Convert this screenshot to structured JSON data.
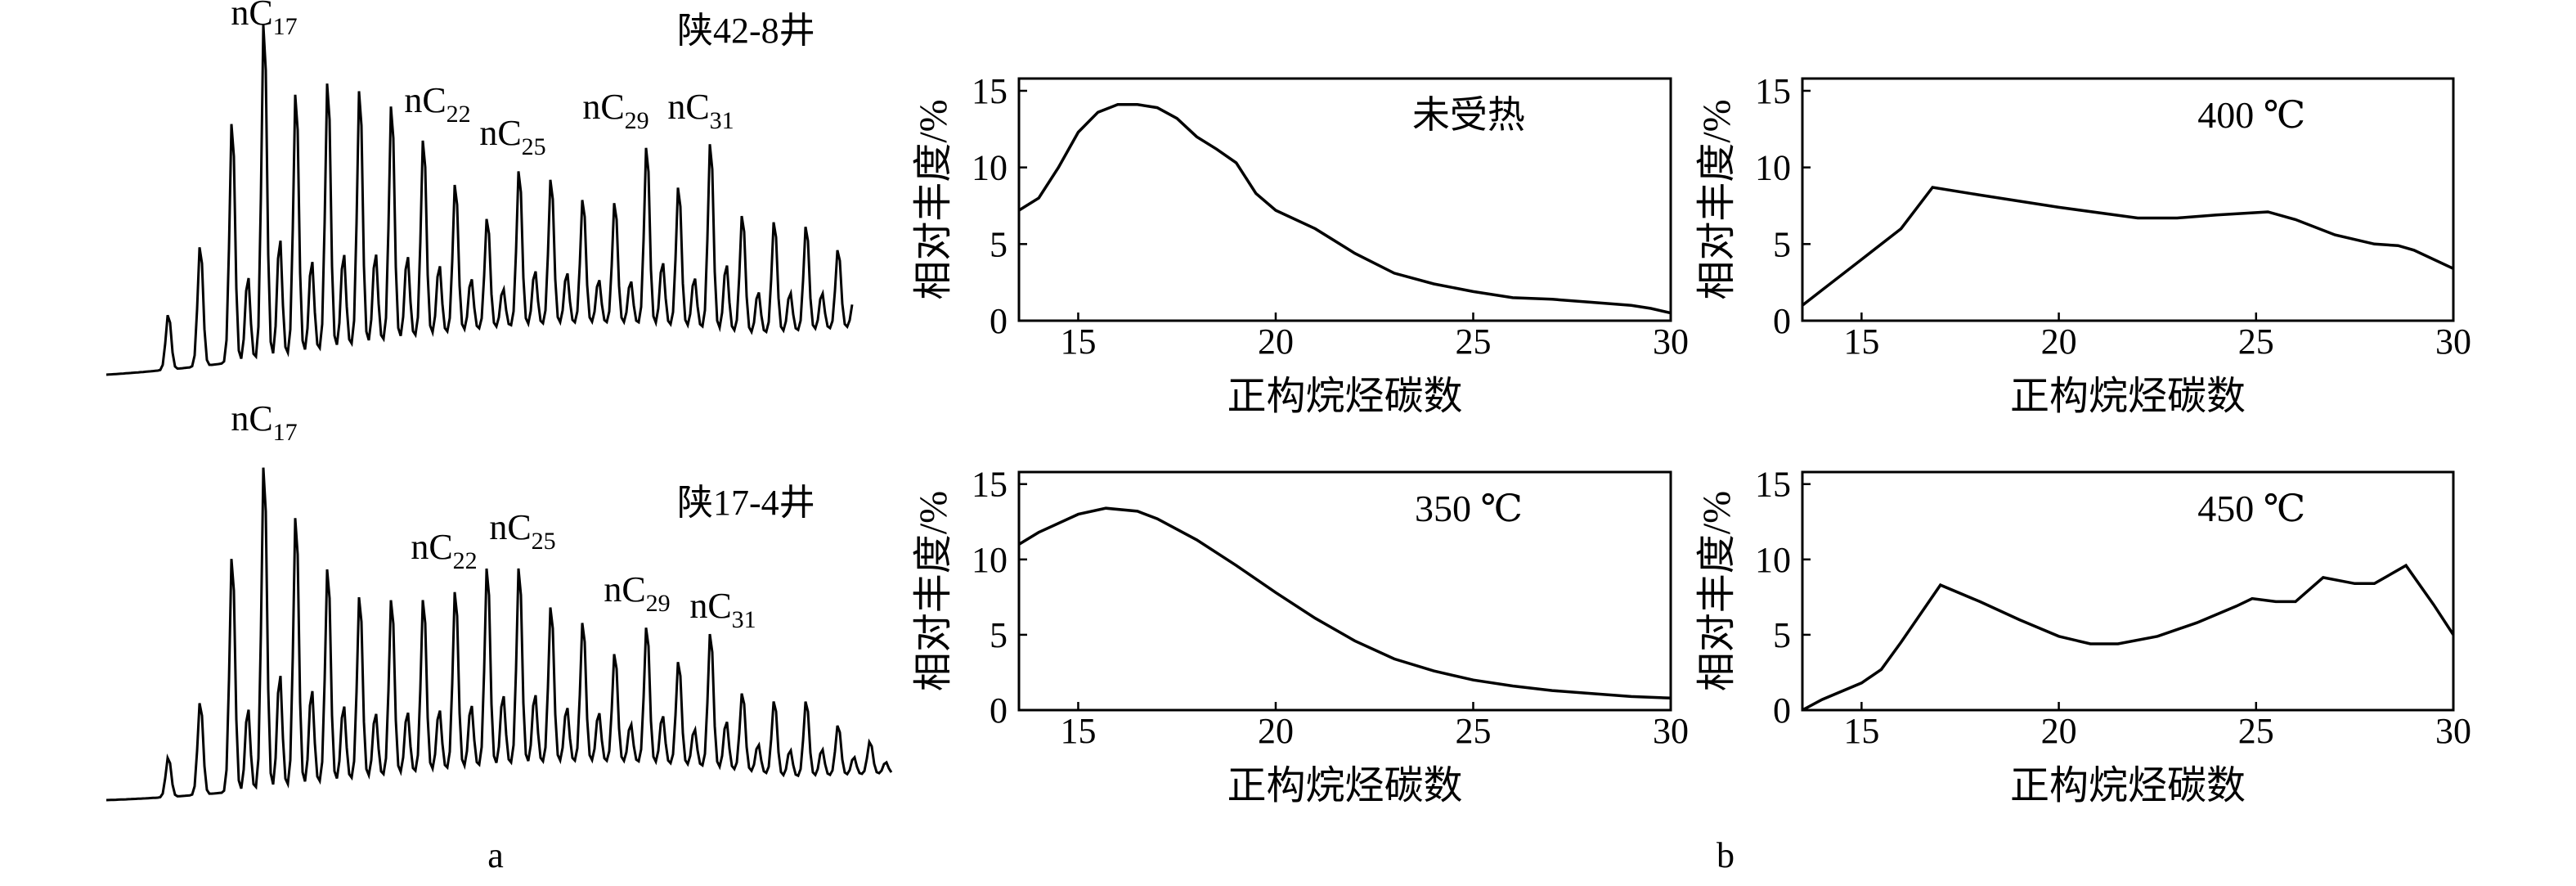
{
  "captions": [
    "a",
    "b"
  ],
  "chromatograms": [
    {
      "well": "陕42-8井",
      "peaks": [
        {
          "base": "nC",
          "sub": "17"
        },
        {
          "base": "nC",
          "sub": "22"
        },
        {
          "base": "nC",
          "sub": "25"
        },
        {
          "base": "nC",
          "sub": "29"
        },
        {
          "base": "nC",
          "sub": "31"
        }
      ]
    },
    {
      "well": "陕17-4井",
      "peaks": [
        {
          "base": "nC",
          "sub": "17"
        },
        {
          "base": "nC",
          "sub": "22"
        },
        {
          "base": "nC",
          "sub": "25"
        },
        {
          "base": "nC",
          "sub": "29"
        },
        {
          "base": "nC",
          "sub": "31"
        }
      ]
    }
  ],
  "chart_data": [
    {
      "type": "line",
      "annotation": "未受热",
      "xlabel": "正构烷烃碳数",
      "ylabel": "相对丰度/%",
      "xlim": [
        13.5,
        30
      ],
      "ylim": [
        0,
        15.8
      ],
      "xticks": [
        15,
        20,
        25,
        30
      ],
      "yticks": [
        0,
        5,
        10,
        15
      ],
      "color": "#000000",
      "x": [
        13.5,
        14,
        14.5,
        15,
        15.5,
        16,
        16.5,
        17,
        17.5,
        18,
        18.5,
        19,
        19.5,
        20,
        21,
        22,
        23,
        24,
        25,
        26,
        27,
        28,
        29,
        29.5,
        30
      ],
      "values": [
        7.2,
        8,
        10,
        12.3,
        13.6,
        14.1,
        14.1,
        13.9,
        13.2,
        12,
        11.2,
        10.3,
        8.3,
        7.2,
        6,
        4.4,
        3.1,
        2.4,
        1.9,
        1.5,
        1.4,
        1.2,
        1,
        0.8,
        0.5
      ]
    },
    {
      "type": "line",
      "annotation": "400 ℃",
      "xlabel": "正构烷烃碳数",
      "ylabel": "相对丰度/%",
      "xlim": [
        13.5,
        30
      ],
      "ylim": [
        0,
        15.8
      ],
      "xticks": [
        15,
        20,
        25,
        30
      ],
      "yticks": [
        0,
        5,
        10,
        15
      ],
      "color": "#000000",
      "x": [
        13.5,
        14,
        15,
        16,
        16.8,
        18,
        20,
        22,
        23,
        24,
        25.3,
        26,
        27,
        28,
        28.6,
        29,
        30
      ],
      "values": [
        1,
        2,
        4,
        6,
        8.7,
        8.2,
        7.4,
        6.7,
        6.7,
        6.9,
        7.1,
        6.6,
        5.6,
        5,
        4.9,
        4.6,
        3.4
      ]
    },
    {
      "type": "line",
      "annotation": "350 ℃",
      "xlabel": "正构烷烃碳数",
      "ylabel": "相对丰度/%",
      "xlim": [
        13.5,
        30
      ],
      "ylim": [
        0,
        15.8
      ],
      "xticks": [
        15,
        20,
        25,
        30
      ],
      "yticks": [
        0,
        5,
        10,
        15
      ],
      "color": "#000000",
      "x": [
        13.5,
        14,
        15,
        15.7,
        16.5,
        17,
        18,
        19,
        20,
        21,
        22,
        23,
        24,
        25,
        26,
        27,
        28,
        29,
        30
      ],
      "values": [
        11,
        11.8,
        13,
        13.4,
        13.2,
        12.7,
        11.3,
        9.6,
        7.8,
        6.1,
        4.6,
        3.4,
        2.6,
        2,
        1.6,
        1.3,
        1.1,
        0.9,
        0.8
      ]
    },
    {
      "type": "line",
      "annotation": "450 ℃",
      "xlabel": "正构烷烃碳数",
      "ylabel": "相对丰度/%",
      "xlim": [
        13.5,
        30
      ],
      "ylim": [
        0,
        15.8
      ],
      "xticks": [
        15,
        20,
        25,
        30
      ],
      "yticks": [
        0,
        5,
        10,
        15
      ],
      "color": "#000000",
      "x": [
        13.5,
        14,
        15,
        15.5,
        16,
        17,
        18,
        19,
        20,
        20.8,
        21.5,
        22.5,
        23.5,
        24.5,
        24.9,
        25.5,
        26,
        26.7,
        27.5,
        28,
        28.8,
        29.5,
        30
      ],
      "values": [
        0,
        0.7,
        1.8,
        2.7,
        4.5,
        8.3,
        7.2,
        6,
        4.9,
        4.4,
        4.4,
        4.9,
        5.8,
        6.9,
        7.4,
        7.2,
        7.2,
        8.8,
        8.4,
        8.4,
        9.6,
        7,
        5
      ]
    }
  ]
}
